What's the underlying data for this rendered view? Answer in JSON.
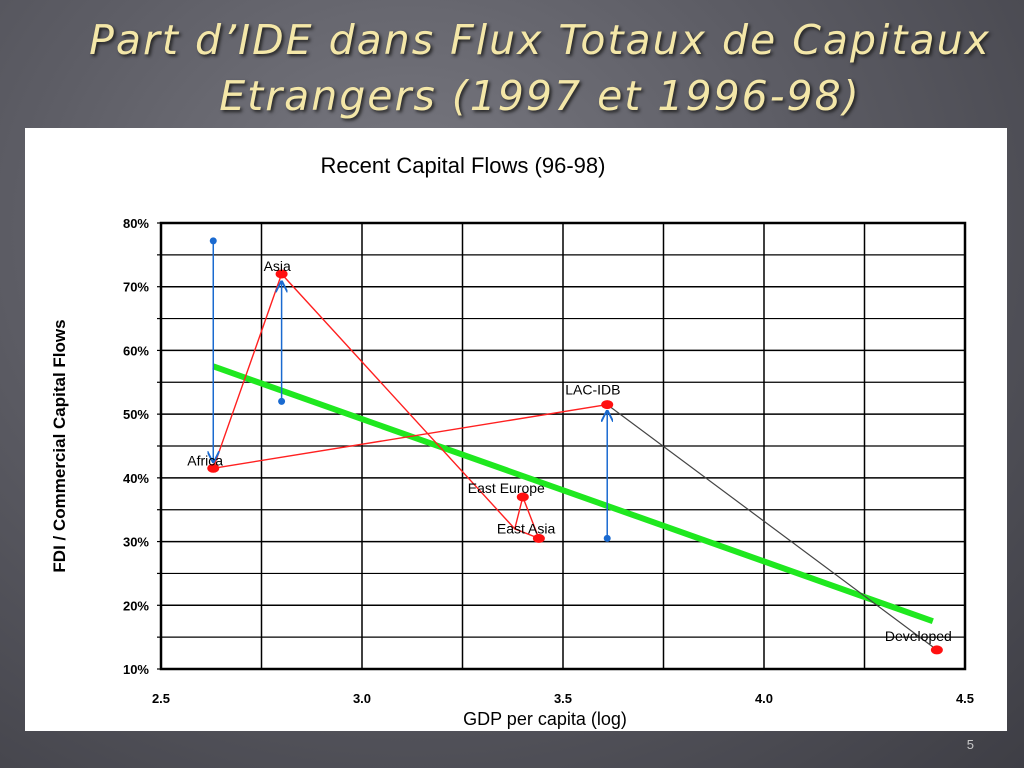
{
  "slide": {
    "title_line1": "Part d’IDE dans Flux Totaux de Capitaux",
    "title_line2": "Etrangers (1997 et 1996-98)",
    "page_number": "5"
  },
  "chart_data": {
    "type": "line",
    "title": "Recent Capital Flows (96-98)",
    "xlabel": "GDP per capita (log)",
    "ylabel": "FDI / Commercial Capital Flows",
    "xlim": [
      2.5,
      4.5
    ],
    "ylim": [
      10,
      80
    ],
    "x_ticks": [
      {
        "value": 2.5,
        "label": "2.5"
      },
      {
        "value": 3.0,
        "label": "3.0"
      },
      {
        "value": 3.5,
        "label": "3.5"
      },
      {
        "value": 4.0,
        "label": "4.0"
      },
      {
        "value": 4.5,
        "label": "4.5"
      }
    ],
    "y_ticks": [
      {
        "value": 10,
        "label": "10%"
      },
      {
        "value": 20,
        "label": "20%"
      },
      {
        "value": 30,
        "label": "30%"
      },
      {
        "value": 40,
        "label": "40%"
      },
      {
        "value": 50,
        "label": "50%"
      },
      {
        "value": 60,
        "label": "60%"
      },
      {
        "value": 70,
        "label": "70%"
      },
      {
        "value": 80,
        "label": "80%"
      }
    ],
    "grid": true,
    "points": [
      {
        "label": "Africa",
        "x": 2.63,
        "y": 41.5
      },
      {
        "label": "Asia",
        "x": 2.8,
        "y": 72
      },
      {
        "label": "East Europe",
        "x": 3.4,
        "y": 37
      },
      {
        "label": "East Asia",
        "x": 3.44,
        "y": 30.5
      },
      {
        "label": "LAC-IDB",
        "x": 3.61,
        "y": 51.5
      },
      {
        "label": "Developed",
        "x": 4.43,
        "y": 13
      }
    ],
    "red_path": [
      {
        "x": 2.63,
        "y": 41.5
      },
      {
        "x": 2.8,
        "y": 72
      },
      {
        "x": 3.38,
        "y": 32
      },
      {
        "x": 3.4,
        "y": 37
      },
      {
        "x": 3.44,
        "y": 30.5
      },
      {
        "x": 3.38,
        "y": 32
      }
    ],
    "red_segment": [
      {
        "x": 2.63,
        "y": 41.5
      },
      {
        "x": 3.61,
        "y": 51.5
      }
    ],
    "black_segment": [
      {
        "x": 3.61,
        "y": 51.5
      },
      {
        "x": 4.43,
        "y": 13
      }
    ],
    "trend_line": [
      {
        "x": 2.63,
        "y": 57.5
      },
      {
        "x": 4.42,
        "y": 17.5
      }
    ],
    "arrows": [
      {
        "x": 2.63,
        "from": 77.2,
        "to": 42.5
      },
      {
        "x": 2.8,
        "from": 52,
        "to": 70.8
      },
      {
        "x": 3.61,
        "from": 30.5,
        "to": 50.5
      }
    ],
    "colors": {
      "trend": "#1fe81f",
      "path": "#ff2020",
      "point": "#ff1010",
      "arrow": "#1a6ad0",
      "developed_path": "#444444",
      "grid": "#000000"
    }
  }
}
